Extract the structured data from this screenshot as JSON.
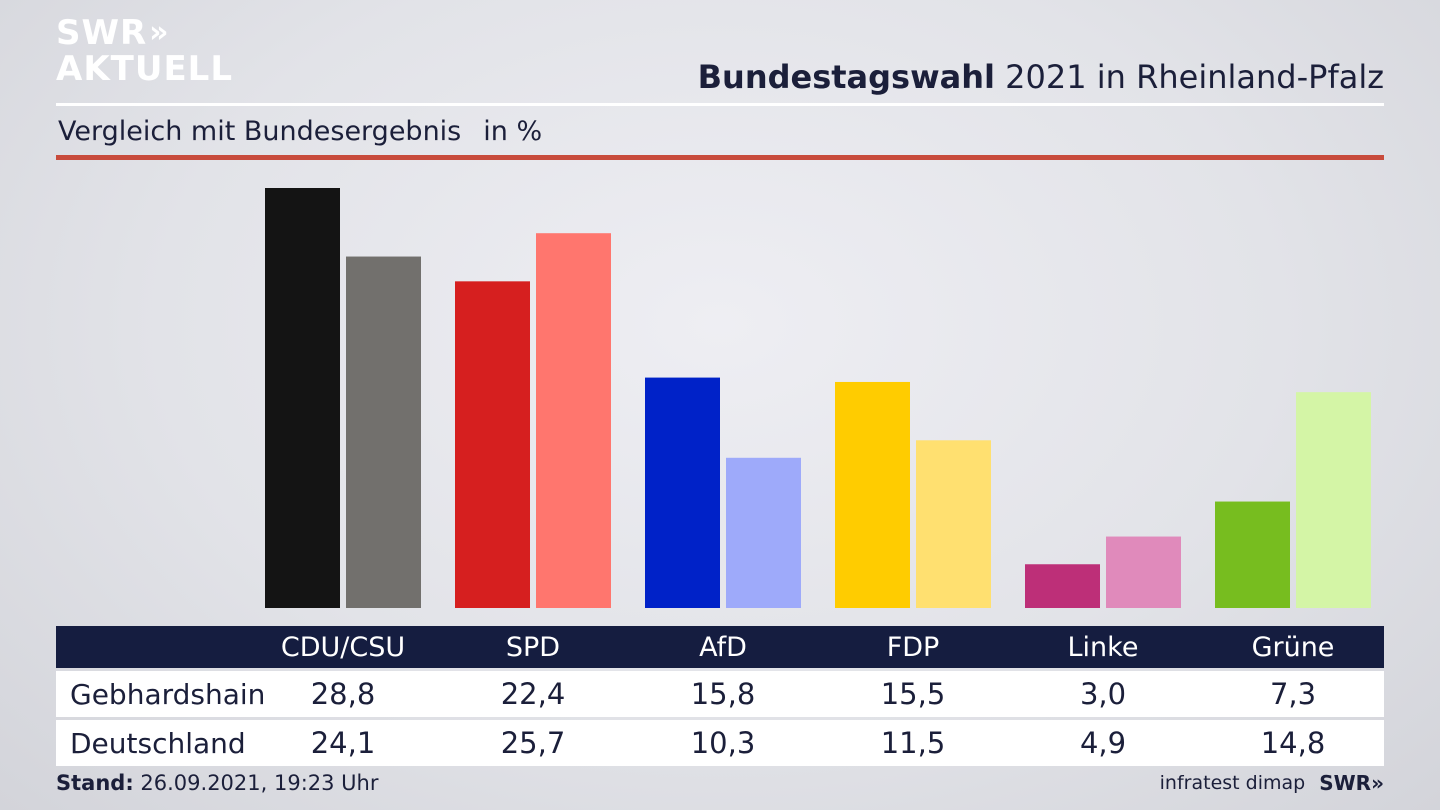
{
  "logo": {
    "line1": "SWR",
    "chevrons": "»",
    "line2": "AKTUELL"
  },
  "header": {
    "title_bold": "Bundestagswahl",
    "title_rest": " 2021 in Rheinland-Pfalz"
  },
  "subtitle": {
    "text": "Vergleich mit Bundesergebnis",
    "unit": "in %"
  },
  "chart_data": {
    "type": "bar",
    "title": "Bundestagswahl 2021 in Rheinland-Pfalz",
    "subtitle": "Vergleich mit Bundesergebnis",
    "unit": "in %",
    "categories": [
      "CDU/CSU",
      "SPD",
      "AfD",
      "FDP",
      "Linke",
      "Grüne"
    ],
    "series": [
      {
        "name": "Gebhardshain",
        "values": [
          28.8,
          22.4,
          15.8,
          15.5,
          3.0,
          7.3
        ]
      },
      {
        "name": "Deutschland",
        "values": [
          24.1,
          25.7,
          10.3,
          11.5,
          4.9,
          14.8
        ]
      }
    ],
    "value_labels": [
      [
        "28,8",
        "22,4",
        "15,8",
        "15,5",
        "3,0",
        "7,3"
      ],
      [
        "24,1",
        "25,7",
        "10,3",
        "11,5",
        "4,9",
        "14,8"
      ]
    ],
    "colors": [
      [
        "#141414",
        "#d61f1f",
        "#0022c8",
        "#ffcc00",
        "#bd2f78",
        "#77bd1f"
      ],
      [
        "#72706d",
        "#ff766e",
        "#9eaafa",
        "#ffe070",
        "#e08abb",
        "#d4f5a6"
      ]
    ],
    "ylim": [
      0,
      28.8
    ],
    "grid": false,
    "legend": "none"
  },
  "footer": {
    "stand_label": "Stand:",
    "stand_value": " 26.09.2021, 19:23 Uhr",
    "source": "infratest dimap",
    "brand": "SWR»"
  }
}
